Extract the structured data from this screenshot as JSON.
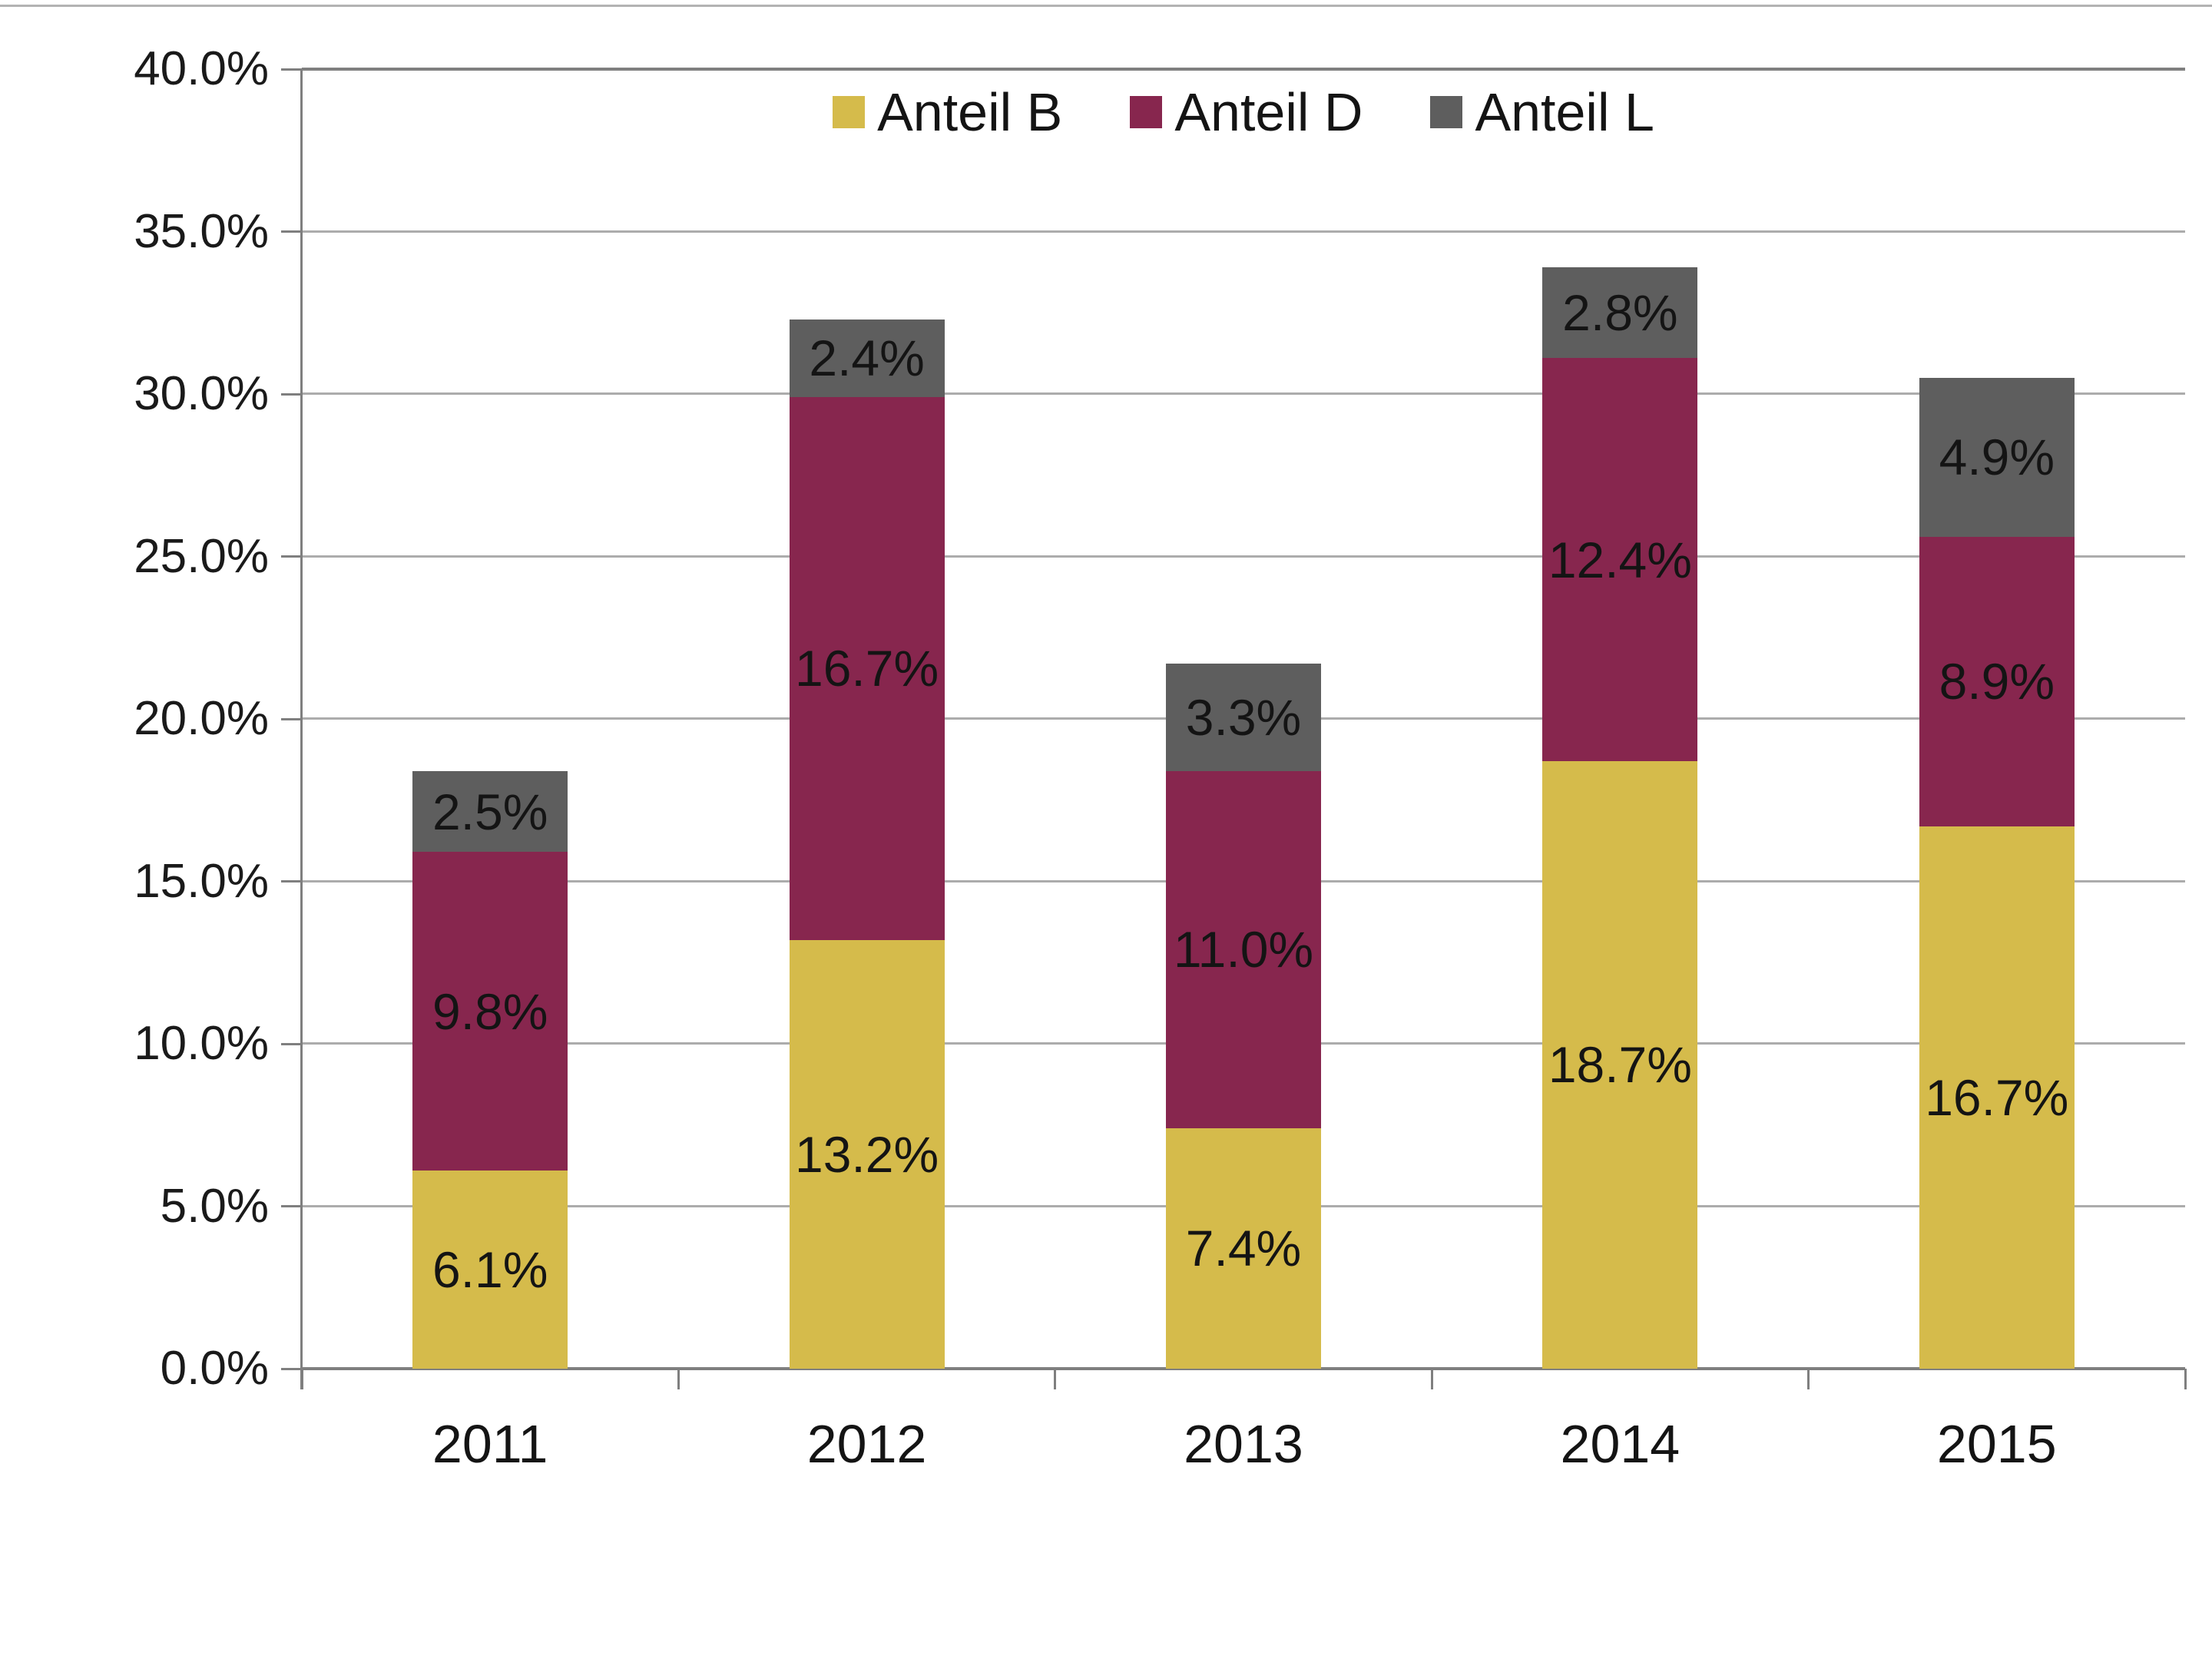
{
  "chart_data": {
    "type": "bar",
    "stacked": true,
    "title": "",
    "xlabel": "",
    "ylabel": "",
    "grid": true,
    "legend_position": "top-center-inside",
    "categories": [
      "2011",
      "2012",
      "2013",
      "2014",
      "2015"
    ],
    "series": [
      {
        "name": "Anteil B",
        "color": "#d5bb4b",
        "values": [
          6.1,
          13.2,
          7.4,
          18.7,
          16.7
        ],
        "labels": [
          "6.1%",
          "13.2%",
          "7.4%",
          "18.7%",
          "16.7%"
        ]
      },
      {
        "name": "Anteil D",
        "color": "#87264e",
        "values": [
          9.8,
          16.7,
          11.0,
          12.4,
          8.9
        ],
        "labels": [
          "9.8%",
          "16.7%",
          "11.0%",
          "12.4%",
          "8.9%"
        ]
      },
      {
        "name": "Anteil L",
        "color": "#5e5e5e",
        "values": [
          2.5,
          2.4,
          3.3,
          2.8,
          4.9
        ],
        "labels": [
          "2.5%",
          "2.4%",
          "3.3%",
          "2.8%",
          "4.9%"
        ]
      }
    ],
    "y_axis": {
      "min": 0,
      "max": 40,
      "ticks": [
        {
          "value": 0,
          "label": "0.0%"
        },
        {
          "value": 5,
          "label": "5.0%"
        },
        {
          "value": 10,
          "label": "10.0%"
        },
        {
          "value": 15,
          "label": "15.0%"
        },
        {
          "value": 20,
          "label": "20.0%"
        },
        {
          "value": 25,
          "label": "25.0%"
        },
        {
          "value": 30,
          "label": "30.0%"
        },
        {
          "value": 35,
          "label": "35.0%"
        },
        {
          "value": 40,
          "label": "40.0%"
        }
      ]
    }
  }
}
